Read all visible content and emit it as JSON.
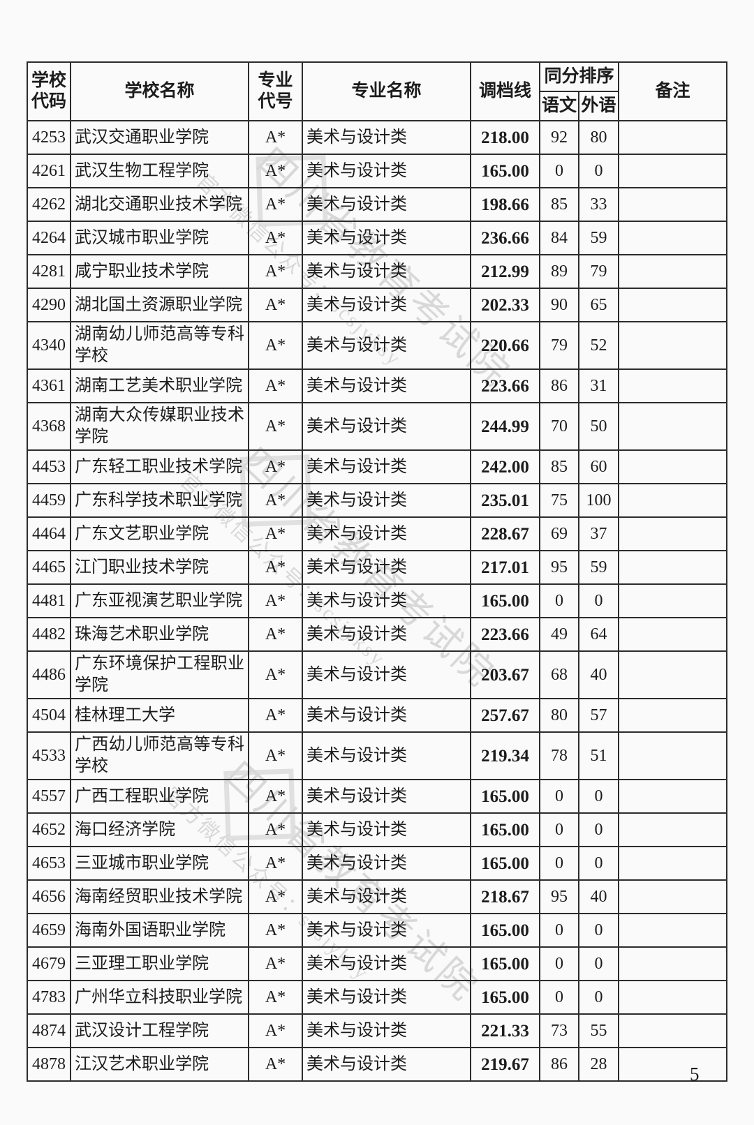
{
  "page": {
    "number": "5"
  },
  "watermark": {
    "line1": "四川省教育考试院",
    "line2": "官方微信公众号：scsjyksy",
    "color": "#bfbebe"
  },
  "table": {
    "headers": {
      "school_code": "学校代码",
      "school_name": "学校名称",
      "major_code": "专业代号",
      "major_name": "专业名称",
      "score_line": "调档线",
      "tiebreak": "同分排序",
      "chinese": "语文",
      "foreign_lang": "外语",
      "remark": "备注"
    },
    "rows": [
      {
        "code": "4253",
        "school": "武汉交通职业学院",
        "major_code": "A*",
        "major": "美术与设计类",
        "score": "218.00",
        "chinese": "92",
        "foreign": "80",
        "remark": ""
      },
      {
        "code": "4261",
        "school": "武汉生物工程学院",
        "major_code": "A*",
        "major": "美术与设计类",
        "score": "165.00",
        "chinese": "0",
        "foreign": "0",
        "remark": ""
      },
      {
        "code": "4262",
        "school": "湖北交通职业技术学院",
        "major_code": "A*",
        "major": "美术与设计类",
        "score": "198.66",
        "chinese": "85",
        "foreign": "33",
        "remark": ""
      },
      {
        "code": "4264",
        "school": "武汉城市职业学院",
        "major_code": "A*",
        "major": "美术与设计类",
        "score": "236.66",
        "chinese": "84",
        "foreign": "59",
        "remark": ""
      },
      {
        "code": "4281",
        "school": "咸宁职业技术学院",
        "major_code": "A*",
        "major": "美术与设计类",
        "score": "212.99",
        "chinese": "89",
        "foreign": "79",
        "remark": ""
      },
      {
        "code": "4290",
        "school": "湖北国土资源职业学院",
        "major_code": "A*",
        "major": "美术与设计类",
        "score": "202.33",
        "chinese": "90",
        "foreign": "65",
        "remark": ""
      },
      {
        "code": "4340",
        "school": "湖南幼儿师范高等专科学校",
        "major_code": "A*",
        "major": "美术与设计类",
        "score": "220.66",
        "chinese": "79",
        "foreign": "52",
        "remark": ""
      },
      {
        "code": "4361",
        "school": "湖南工艺美术职业学院",
        "major_code": "A*",
        "major": "美术与设计类",
        "score": "223.66",
        "chinese": "86",
        "foreign": "31",
        "remark": ""
      },
      {
        "code": "4368",
        "school": "湖南大众传媒职业技术学院",
        "major_code": "A*",
        "major": "美术与设计类",
        "score": "244.99",
        "chinese": "70",
        "foreign": "50",
        "remark": ""
      },
      {
        "code": "4453",
        "school": "广东轻工职业技术学院",
        "major_code": "A*",
        "major": "美术与设计类",
        "score": "242.00",
        "chinese": "85",
        "foreign": "60",
        "remark": ""
      },
      {
        "code": "4459",
        "school": "广东科学技术职业学院",
        "major_code": "A*",
        "major": "美术与设计类",
        "score": "235.01",
        "chinese": "75",
        "foreign": "100",
        "remark": ""
      },
      {
        "code": "4464",
        "school": "广东文艺职业学院",
        "major_code": "A*",
        "major": "美术与设计类",
        "score": "228.67",
        "chinese": "69",
        "foreign": "37",
        "remark": ""
      },
      {
        "code": "4465",
        "school": "江门职业技术学院",
        "major_code": "A*",
        "major": "美术与设计类",
        "score": "217.01",
        "chinese": "95",
        "foreign": "59",
        "remark": ""
      },
      {
        "code": "4481",
        "school": "广东亚视演艺职业学院",
        "major_code": "A*",
        "major": "美术与设计类",
        "score": "165.00",
        "chinese": "0",
        "foreign": "0",
        "remark": ""
      },
      {
        "code": "4482",
        "school": "珠海艺术职业学院",
        "major_code": "A*",
        "major": "美术与设计类",
        "score": "223.66",
        "chinese": "49",
        "foreign": "64",
        "remark": ""
      },
      {
        "code": "4486",
        "school": "广东环境保护工程职业学院",
        "major_code": "A*",
        "major": "美术与设计类",
        "score": "203.67",
        "chinese": "68",
        "foreign": "40",
        "remark": ""
      },
      {
        "code": "4504",
        "school": "桂林理工大学",
        "major_code": "A*",
        "major": "美术与设计类",
        "score": "257.67",
        "chinese": "80",
        "foreign": "57",
        "remark": ""
      },
      {
        "code": "4533",
        "school": "广西幼儿师范高等专科学校",
        "major_code": "A*",
        "major": "美术与设计类",
        "score": "219.34",
        "chinese": "78",
        "foreign": "51",
        "remark": ""
      },
      {
        "code": "4557",
        "school": "广西工程职业学院",
        "major_code": "A*",
        "major": "美术与设计类",
        "score": "165.00",
        "chinese": "0",
        "foreign": "0",
        "remark": ""
      },
      {
        "code": "4652",
        "school": "海口经济学院",
        "major_code": "A*",
        "major": "美术与设计类",
        "score": "165.00",
        "chinese": "0",
        "foreign": "0",
        "remark": ""
      },
      {
        "code": "4653",
        "school": "三亚城市职业学院",
        "major_code": "A*",
        "major": "美术与设计类",
        "score": "165.00",
        "chinese": "0",
        "foreign": "0",
        "remark": ""
      },
      {
        "code": "4656",
        "school": "海南经贸职业技术学院",
        "major_code": "A*",
        "major": "美术与设计类",
        "score": "218.67",
        "chinese": "95",
        "foreign": "40",
        "remark": ""
      },
      {
        "code": "4659",
        "school": "海南外国语职业学院",
        "major_code": "A*",
        "major": "美术与设计类",
        "score": "165.00",
        "chinese": "0",
        "foreign": "0",
        "remark": ""
      },
      {
        "code": "4679",
        "school": "三亚理工职业学院",
        "major_code": "A*",
        "major": "美术与设计类",
        "score": "165.00",
        "chinese": "0",
        "foreign": "0",
        "remark": ""
      },
      {
        "code": "4783",
        "school": "广州华立科技职业学院",
        "major_code": "A*",
        "major": "美术与设计类",
        "score": "165.00",
        "chinese": "0",
        "foreign": "0",
        "remark": ""
      },
      {
        "code": "4874",
        "school": "武汉设计工程学院",
        "major_code": "A*",
        "major": "美术与设计类",
        "score": "221.33",
        "chinese": "73",
        "foreign": "55",
        "remark": ""
      },
      {
        "code": "4878",
        "school": "江汉艺术职业学院",
        "major_code": "A*",
        "major": "美术与设计类",
        "score": "219.67",
        "chinese": "86",
        "foreign": "28",
        "remark": ""
      }
    ]
  }
}
